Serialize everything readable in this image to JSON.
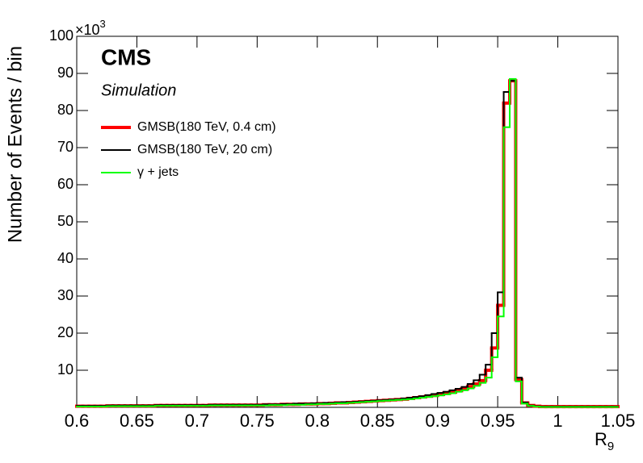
{
  "chart_data": {
    "type": "histogram",
    "experiment": "CMS",
    "subtitle": "Simulation",
    "ylabel": "Number of Events / bin",
    "xlabel": {
      "text": "R",
      "subscript": "9"
    },
    "multiplier": {
      "base": "×10",
      "exponent": "3"
    },
    "xlim": [
      0.6,
      1.05
    ],
    "ylim": [
      0,
      100
    ],
    "xticks": [
      0.6,
      0.65,
      0.7,
      0.75,
      0.8,
      0.85,
      0.9,
      0.95,
      1,
      1.05
    ],
    "yticks": [
      10,
      20,
      30,
      40,
      50,
      60,
      70,
      80,
      90,
      100
    ],
    "bins": [
      0.6,
      0.605,
      0.61,
      0.615,
      0.62,
      0.625,
      0.63,
      0.635,
      0.64,
      0.645,
      0.65,
      0.655,
      0.66,
      0.665,
      0.67,
      0.675,
      0.68,
      0.685,
      0.69,
      0.695,
      0.7,
      0.705,
      0.71,
      0.715,
      0.72,
      0.725,
      0.73,
      0.735,
      0.74,
      0.745,
      0.75,
      0.755,
      0.76,
      0.765,
      0.77,
      0.775,
      0.78,
      0.785,
      0.79,
      0.795,
      0.8,
      0.805,
      0.81,
      0.815,
      0.82,
      0.825,
      0.83,
      0.835,
      0.84,
      0.845,
      0.85,
      0.855,
      0.86,
      0.865,
      0.87,
      0.875,
      0.88,
      0.885,
      0.89,
      0.895,
      0.9,
      0.905,
      0.91,
      0.915,
      0.92,
      0.925,
      0.93,
      0.935,
      0.94,
      0.945,
      0.95,
      0.955,
      0.96,
      0.965,
      0.97,
      0.975,
      0.98,
      0.985,
      0.99,
      0.995,
      1,
      1.005,
      1.01,
      1.015,
      1.02,
      1.025,
      1.03,
      1.035,
      1.04,
      1.045,
      1.05
    ],
    "series": [
      {
        "name": "GMSB(180 TeV, 0.4 cm)",
        "color": "#ff0000",
        "width": 4,
        "values": [
          0.3,
          0.3,
          0.3,
          0.3,
          0.3,
          0.4,
          0.4,
          0.4,
          0.4,
          0.4,
          0.4,
          0.4,
          0.4,
          0.5,
          0.5,
          0.5,
          0.5,
          0.5,
          0.5,
          0.5,
          0.5,
          0.5,
          0.6,
          0.6,
          0.6,
          0.6,
          0.6,
          0.6,
          0.6,
          0.6,
          0.6,
          0.7,
          0.7,
          0.7,
          0.8,
          0.8,
          0.8,
          0.9,
          0.9,
          0.9,
          1.0,
          1.0,
          1.1,
          1.2,
          1.2,
          1.3,
          1.4,
          1.5,
          1.6,
          1.7,
          1.8,
          1.9,
          2.0,
          2.1,
          2.2,
          2.4,
          2.6,
          2.8,
          3.0,
          3.2,
          3.5,
          3.8,
          4.1,
          4.5,
          5.0,
          5.6,
          6.3,
          7.2,
          10,
          16,
          27.5,
          82,
          88,
          7.5,
          1.2,
          0.5,
          0.3,
          0.2,
          0.2,
          0.2,
          0.2,
          0.2,
          0.2,
          0.2,
          0.2,
          0.2,
          0.2,
          0.2,
          0.2,
          0.2
        ]
      },
      {
        "name": "GMSB(180 TeV, 20 cm)",
        "color": "#000000",
        "width": 2,
        "values": [
          0.4,
          0.4,
          0.4,
          0.4,
          0.4,
          0.5,
          0.5,
          0.5,
          0.5,
          0.5,
          0.5,
          0.5,
          0.5,
          0.6,
          0.6,
          0.6,
          0.6,
          0.6,
          0.6,
          0.6,
          0.6,
          0.6,
          0.7,
          0.7,
          0.7,
          0.7,
          0.7,
          0.7,
          0.7,
          0.7,
          0.7,
          0.8,
          0.8,
          0.8,
          0.9,
          0.9,
          1.0,
          1.0,
          1.0,
          1.1,
          1.1,
          1.2,
          1.2,
          1.3,
          1.4,
          1.4,
          1.5,
          1.6,
          1.7,
          1.8,
          1.9,
          2.0,
          2.1,
          2.2,
          2.4,
          2.6,
          2.8,
          3.0,
          3.3,
          3.6,
          3.9,
          4.2,
          4.6,
          5.0,
          5.5,
          6.3,
          7.3,
          8.8,
          11.5,
          20,
          31,
          85,
          88,
          8,
          1.3,
          0.5,
          0.3,
          0.2,
          0.2,
          0.2,
          0.2,
          0.2,
          0.2,
          0.2,
          0.2,
          0.2,
          0.2,
          0.2,
          0.2,
          0.2
        ]
      },
      {
        "name": "γ + jets",
        "color": "#00ff00",
        "width": 2,
        "values": [
          0.2,
          0.2,
          0.2,
          0.2,
          0.2,
          0.3,
          0.3,
          0.3,
          0.3,
          0.3,
          0.3,
          0.3,
          0.3,
          0.4,
          0.4,
          0.4,
          0.4,
          0.4,
          0.4,
          0.4,
          0.4,
          0.4,
          0.5,
          0.5,
          0.5,
          0.5,
          0.5,
          0.5,
          0.5,
          0.5,
          0.5,
          0.5,
          0.6,
          0.6,
          0.6,
          0.7,
          0.7,
          0.7,
          0.8,
          0.8,
          0.9,
          0.9,
          1.0,
          1.1,
          1.1,
          1.2,
          1.3,
          1.4,
          1.5,
          1.6,
          1.7,
          1.8,
          1.9,
          2.0,
          2.1,
          2.2,
          2.4,
          2.6,
          2.8,
          3.0,
          3.2,
          3.5,
          3.8,
          4.2,
          4.6,
          5.1,
          5.8,
          6.6,
          8,
          13.5,
          24.5,
          75.5,
          88.5,
          7,
          1,
          0.4,
          0.2,
          0.1,
          0.1,
          0.1,
          0.1,
          0.1,
          0.1,
          0.1,
          0.1,
          0.1,
          0.1,
          0.1,
          0.1,
          0.1
        ]
      }
    ]
  }
}
